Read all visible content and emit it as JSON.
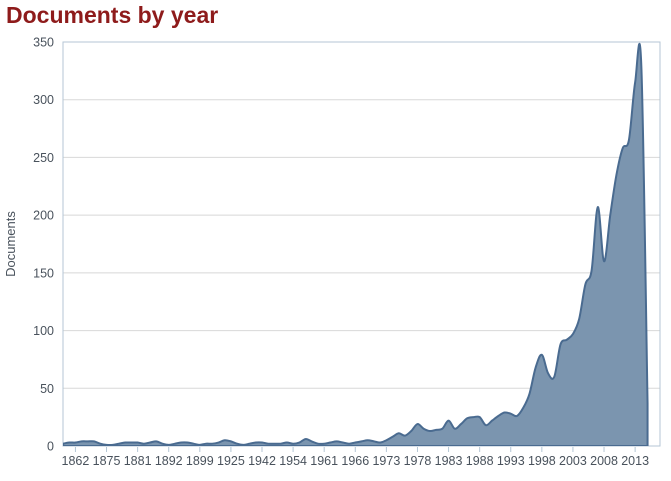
{
  "header": {
    "title": "Documents by year"
  },
  "chart_data": {
    "type": "area",
    "title": "Documents by year",
    "xlabel": "",
    "ylabel": "Documents",
    "ylim": [
      0,
      350
    ],
    "yticks": [
      0,
      50,
      100,
      150,
      200,
      250,
      300,
      350
    ],
    "grid": "horizontal",
    "legend": "none",
    "x_axis": {
      "labels": [
        "1862",
        "1875",
        "1881",
        "1892",
        "1899",
        "1925",
        "1942",
        "1954",
        "1961",
        "1966",
        "1973",
        "1978",
        "1983",
        "1988",
        "1993",
        "1998",
        "2003",
        "2008",
        "2013"
      ],
      "label_start_index": 2,
      "label_every": 5,
      "note": "categorical axis of publication years present in the dataset; every 5th point is labeled; two unlabeled points follow 2013"
    },
    "values": [
      2,
      3,
      3,
      4,
      4,
      4,
      2,
      1,
      1,
      2,
      3,
      3,
      3,
      2,
      3,
      4,
      2,
      1,
      2,
      3,
      3,
      2,
      1,
      2,
      2,
      3,
      5,
      4,
      2,
      1,
      2,
      3,
      3,
      2,
      2,
      2,
      3,
      2,
      3,
      6,
      4,
      2,
      2,
      3,
      4,
      3,
      2,
      3,
      4,
      5,
      4,
      3,
      5,
      8,
      11,
      9,
      13,
      19,
      15,
      13,
      14,
      15,
      22,
      15,
      19,
      24,
      25,
      25,
      18,
      22,
      26,
      29,
      28,
      26,
      33,
      45,
      68,
      79,
      63,
      60,
      88,
      92,
      97,
      110,
      140,
      152,
      207,
      160,
      200,
      235,
      258,
      265,
      315,
      329,
      37
    ],
    "key_points": {
      "peak_1998": 79,
      "dip_2000": 60,
      "spike_2007": 207,
      "dip_2008": 160,
      "max_peak_2014": 329,
      "final_partial_year": 37
    },
    "colors": {
      "title": "#8e1b1b",
      "area_fill": "#7b95af",
      "area_stroke": "#4a6b90",
      "grid": "#d8d8d8",
      "plot_border": "#b4c6d5",
      "tick": "#b4c6d5",
      "axis_text": "#49525c"
    }
  }
}
